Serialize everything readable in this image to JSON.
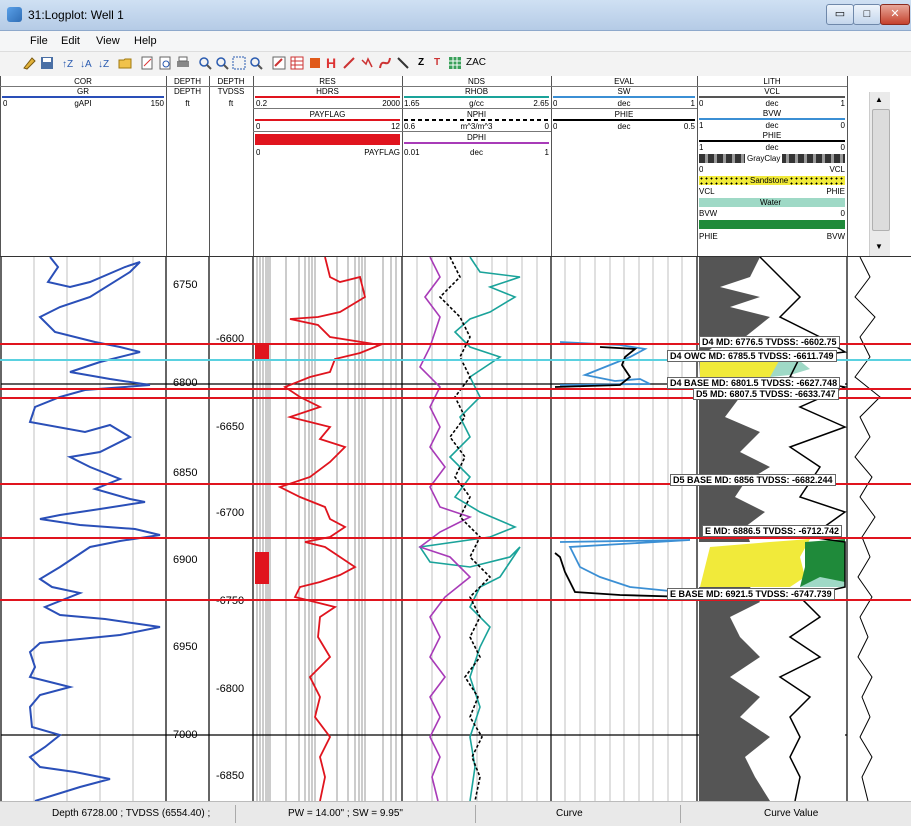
{
  "window": {
    "title": "31:Logplot: Well 1",
    "minimize": "▭",
    "maximize": "□",
    "close": "✕"
  },
  "menu": [
    "File",
    "Edit",
    "View",
    "Help"
  ],
  "toolbar": {
    "zac_label": "ZAC",
    "z_label": "Z",
    "t_label": "T",
    "h_label": "H"
  },
  "tracks": {
    "cor": {
      "title": "COR",
      "curve": "GR",
      "min": "0",
      "unit": "gAPI",
      "max": "150",
      "color": "#2a4fb8"
    },
    "depth": {
      "title": "DEPTH",
      "sub": "DEPTH",
      "unit": "ft"
    },
    "tvdss": {
      "title": "DEPTH",
      "sub": "TVDSS",
      "unit": "ft"
    },
    "res": {
      "title": "RES",
      "hdrs": {
        "name": "HDRS",
        "min": "0.2",
        "max": "2000",
        "color": "#e0141e"
      },
      "payflag": {
        "name": "PAYFLAG",
        "min": "0",
        "max": "12",
        "color": "#e0141e"
      },
      "payflag2": {
        "min": "0",
        "name": "PAYFLAG",
        "color": "#e0141e"
      }
    },
    "nds": {
      "title": "NDS",
      "rhob": {
        "name": "RHOB",
        "min": "1.65",
        "unit": "g/cc",
        "max": "2.65",
        "color": "#1aa39a"
      },
      "nphi": {
        "name": "NPHI",
        "min": "0.6",
        "unit": "m^3/m^3",
        "max": "0",
        "color": "#000000"
      },
      "dphi": {
        "name": "DPHI",
        "min": "0.01",
        "unit": "dec",
        "max": "1",
        "color": "#a83bb8"
      }
    },
    "eval": {
      "title": "EVAL",
      "sw": {
        "name": "SW",
        "min": "0",
        "unit": "dec",
        "max": "1",
        "color": "#3b8fd4"
      },
      "phie": {
        "name": "PHIE",
        "min": "0",
        "unit": "dec",
        "max": "0.5",
        "color": "#000000"
      }
    },
    "lith": {
      "title": "LITH",
      "vcl": {
        "name": "VCL",
        "min": "0",
        "unit": "dec",
        "max": "1"
      },
      "bvw": {
        "name": "BVW",
        "min": "1",
        "unit": "dec",
        "max": "0",
        "color": "#3b8fd4"
      },
      "phie": {
        "name": "PHIE",
        "min": "1",
        "unit": "dec",
        "max": "0"
      },
      "grayclay": {
        "name": "GrayClay",
        "left": "0",
        "right": "VCL"
      },
      "sandstone": {
        "name": "Sandstone",
        "left": "VCL",
        "right": "PHIE"
      },
      "water": {
        "name": "Water",
        "left": "BVW",
        "right": "0"
      },
      "green": {
        "left": "PHIE",
        "right": "BVW"
      }
    }
  },
  "depth_labels": [
    "6750",
    "6800",
    "6850",
    "6900",
    "6950",
    "7000"
  ],
  "tvdss_labels": [
    "-6600",
    "-6650",
    "-6700",
    "-6750",
    "-6800",
    "-6850"
  ],
  "markers": [
    {
      "label": "D4 MD: 6776.5 TVDSS:  -6602.75",
      "color": "#e0141e"
    },
    {
      "label": "D4 OWC MD: 6785.5 TVDSS:  -6611.749",
      "color": "#5ad1e0"
    },
    {
      "label": "D4 BASE MD: 6801.5 TVDSS:  -6627.748",
      "color": "#e0141e"
    },
    {
      "label": "D5 MD: 6807.5 TVDSS:  -6633.747",
      "color": "#e0141e"
    },
    {
      "label": "D5 BASE MD: 6856 TVDSS:  -6682.244",
      "color": "#e0141e"
    },
    {
      "label": "E MD: 6886.5 TVDSS:  -6712.742",
      "color": "#e0141e"
    },
    {
      "label": "E BASE MD: 6921.5 TVDSS:  -6747.739",
      "color": "#e0141e"
    }
  ],
  "status": {
    "depth": "Depth 6728.00 ; TVDSS (6554.40) ;",
    "pw": "PW = 14.00\" ; SW = 9.95\"",
    "curve": "Curve",
    "value": "Curve Value"
  }
}
